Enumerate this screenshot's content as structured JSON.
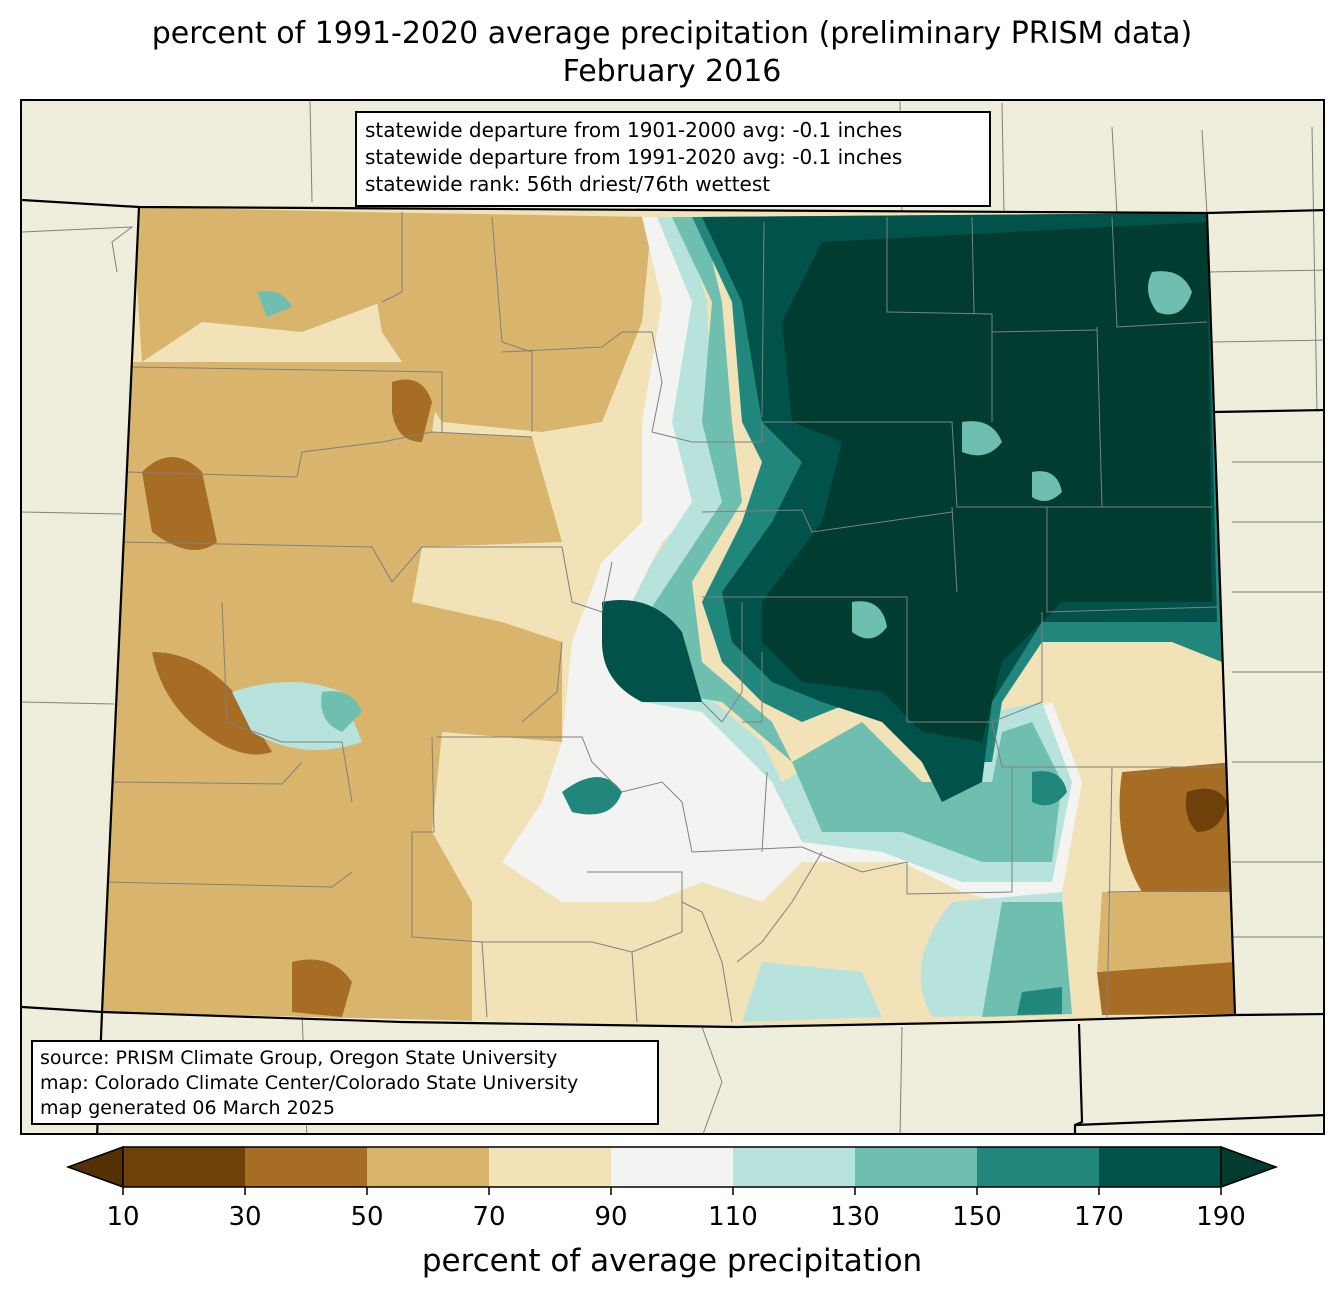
{
  "title": {
    "line1": "percent of 1991-2020 average precipitation (preliminary PRISM data)",
    "line2": "February 2016"
  },
  "stats": {
    "line1": "statewide departure from 1901-2000 avg: -0.1 inches",
    "line2": "statewide departure from 1991-2020 avg: -0.1 inches",
    "line3": "statewide rank: 56th driest/76th wettest"
  },
  "source": {
    "line1": "source: PRISM Climate Group, Oregon State University",
    "line2": "map: Colorado Climate Center/Colorado State University",
    "line3": "map generated 06 March 2025"
  },
  "colorbar": {
    "label": "percent of average precipitation",
    "ticks": [
      "10",
      "30",
      "50",
      "70",
      "90",
      "110",
      "130",
      "150",
      "170",
      "190"
    ],
    "under_color": "#543005",
    "over_color": "#003c30",
    "bins": [
      {
        "from": 10,
        "to": 30,
        "color": "#6e400a"
      },
      {
        "from": 30,
        "to": 50,
        "color": "#a86d24"
      },
      {
        "from": 50,
        "to": 70,
        "color": "#d8b46c"
      },
      {
        "from": 70,
        "to": 90,
        "color": "#f2e2b8"
      },
      {
        "from": 90,
        "to": 110,
        "color": "#f3f4f2"
      },
      {
        "from": 110,
        "to": 130,
        "color": "#b8e3dc"
      },
      {
        "from": 130,
        "to": 150,
        "color": "#6fbfb0"
      },
      {
        "from": 150,
        "to": 170,
        "color": "#21867c"
      },
      {
        "from": 170,
        "to": 190,
        "color": "#01524a"
      }
    ]
  },
  "map": {
    "land_color": "#efeedc",
    "state_border_color": "#000000",
    "county_border_color": "#808080"
  }
}
